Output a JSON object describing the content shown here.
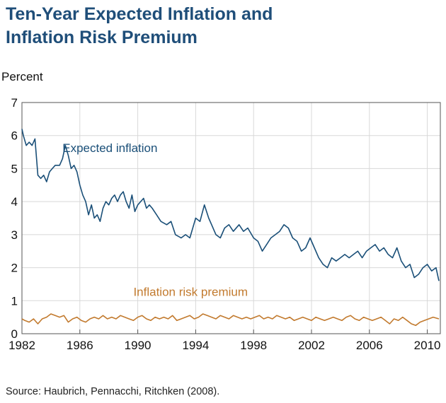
{
  "chart_data": {
    "type": "line",
    "title_line1": "Ten-Year Expected Inflation and",
    "title_line2": "Inflation Risk Premium",
    "ylabel": "Percent",
    "source": "Source: Haubrich, Pennacchi, Ritchken (2008).",
    "xlim": [
      1982,
      2010.9
    ],
    "ylim": [
      0,
      7
    ],
    "xticks": [
      1982,
      1986,
      1990,
      1994,
      1998,
      2002,
      2006,
      2010
    ],
    "yticks": [
      0,
      1,
      2,
      3,
      4,
      5,
      6,
      7
    ],
    "grid": true,
    "series": [
      {
        "name": "Expected inflation",
        "color": "#1a4f78",
        "label_at": [
          1984.8,
          5.5
        ],
        "x": [
          1982.0,
          1982.1,
          1982.3,
          1982.5,
          1982.7,
          1982.9,
          1983.1,
          1983.3,
          1983.5,
          1983.7,
          1983.9,
          1984.1,
          1984.3,
          1984.6,
          1984.8,
          1985.0,
          1985.2,
          1985.4,
          1985.6,
          1985.8,
          1986.0,
          1986.2,
          1986.4,
          1986.6,
          1986.8,
          1987.0,
          1987.2,
          1987.4,
          1987.6,
          1987.8,
          1988.0,
          1988.2,
          1988.4,
          1988.6,
          1988.8,
          1989.0,
          1989.2,
          1989.4,
          1989.6,
          1989.8,
          1990.0,
          1990.2,
          1990.4,
          1990.6,
          1990.8,
          1991.0,
          1991.3,
          1991.6,
          1992.0,
          1992.3,
          1992.6,
          1993.0,
          1993.3,
          1993.6,
          1994.0,
          1994.3,
          1994.6,
          1994.9,
          1995.1,
          1995.4,
          1995.7,
          1996.0,
          1996.3,
          1996.6,
          1997.0,
          1997.3,
          1997.6,
          1998.0,
          1998.3,
          1998.6,
          1998.9,
          1999.2,
          1999.5,
          1999.8,
          2000.1,
          2000.4,
          2000.7,
          2001.0,
          2001.3,
          2001.6,
          2001.9,
          2002.2,
          2002.5,
          2002.8,
          2003.1,
          2003.4,
          2003.7,
          2004.0,
          2004.3,
          2004.6,
          2004.9,
          2005.2,
          2005.5,
          2005.8,
          2006.1,
          2006.4,
          2006.7,
          2007.0,
          2007.3,
          2007.6,
          2007.9,
          2008.2,
          2008.5,
          2008.8,
          2009.1,
          2009.4,
          2009.7,
          2010.0,
          2010.3,
          2010.6,
          2010.8
        ],
        "y": [
          6.2,
          6.0,
          5.7,
          5.8,
          5.7,
          5.9,
          4.8,
          4.7,
          4.8,
          4.6,
          4.9,
          5.0,
          5.1,
          5.1,
          5.3,
          5.7,
          5.4,
          5.0,
          5.1,
          4.9,
          4.5,
          4.2,
          4.0,
          3.6,
          3.9,
          3.5,
          3.6,
          3.4,
          3.8,
          4.0,
          3.9,
          4.1,
          4.2,
          4.0,
          4.2,
          4.3,
          4.0,
          3.8,
          4.2,
          3.7,
          3.9,
          4.0,
          4.1,
          3.8,
          3.9,
          3.8,
          3.6,
          3.4,
          3.3,
          3.4,
          3.0,
          2.9,
          3.0,
          2.9,
          3.5,
          3.4,
          3.9,
          3.5,
          3.3,
          3.0,
          2.9,
          3.2,
          3.3,
          3.1,
          3.3,
          3.1,
          3.2,
          2.9,
          2.8,
          2.5,
          2.7,
          2.9,
          3.0,
          3.1,
          3.3,
          3.2,
          2.9,
          2.8,
          2.5,
          2.6,
          2.9,
          2.6,
          2.3,
          2.1,
          2.0,
          2.3,
          2.2,
          2.3,
          2.4,
          2.3,
          2.4,
          2.5,
          2.3,
          2.5,
          2.6,
          2.7,
          2.5,
          2.6,
          2.4,
          2.3,
          2.6,
          2.2,
          2.0,
          2.1,
          1.7,
          1.8,
          2.0,
          2.1,
          1.9,
          2.0,
          1.6
        ]
      },
      {
        "name": "Inflation risk premium",
        "color": "#c27a2e",
        "label_at": [
          1989.7,
          1.15
        ],
        "x": [
          1982.0,
          1982.2,
          1982.5,
          1982.8,
          1983.1,
          1983.4,
          1983.7,
          1984.0,
          1984.3,
          1984.6,
          1984.9,
          1985.2,
          1985.5,
          1985.8,
          1986.1,
          1986.4,
          1986.7,
          1987.0,
          1987.3,
          1987.6,
          1987.9,
          1988.2,
          1988.5,
          1988.8,
          1989.1,
          1989.4,
          1989.7,
          1990.0,
          1990.3,
          1990.6,
          1990.9,
          1991.2,
          1991.5,
          1991.8,
          1992.1,
          1992.4,
          1992.7,
          1993.0,
          1993.3,
          1993.6,
          1993.9,
          1994.2,
          1994.5,
          1994.8,
          1995.1,
          1995.4,
          1995.7,
          1996.0,
          1996.3,
          1996.6,
          1996.9,
          1997.2,
          1997.5,
          1997.8,
          1998.1,
          1998.4,
          1998.7,
          1999.0,
          1999.3,
          1999.6,
          1999.9,
          2000.2,
          2000.5,
          2000.8,
          2001.1,
          2001.4,
          2001.7,
          2002.0,
          2002.3,
          2002.6,
          2002.9,
          2003.2,
          2003.5,
          2003.8,
          2004.1,
          2004.4,
          2004.7,
          2005.0,
          2005.3,
          2005.6,
          2005.9,
          2006.2,
          2006.5,
          2006.8,
          2007.1,
          2007.4,
          2007.7,
          2008.0,
          2008.3,
          2008.6,
          2008.9,
          2009.2,
          2009.5,
          2009.8,
          2010.1,
          2010.4,
          2010.8
        ],
        "y": [
          0.45,
          0.4,
          0.35,
          0.45,
          0.3,
          0.45,
          0.5,
          0.6,
          0.55,
          0.5,
          0.55,
          0.35,
          0.45,
          0.5,
          0.4,
          0.35,
          0.45,
          0.5,
          0.45,
          0.55,
          0.45,
          0.5,
          0.45,
          0.55,
          0.5,
          0.45,
          0.4,
          0.5,
          0.55,
          0.45,
          0.4,
          0.5,
          0.45,
          0.5,
          0.45,
          0.55,
          0.4,
          0.45,
          0.5,
          0.55,
          0.45,
          0.5,
          0.6,
          0.55,
          0.5,
          0.45,
          0.55,
          0.5,
          0.45,
          0.55,
          0.5,
          0.45,
          0.5,
          0.45,
          0.5,
          0.55,
          0.45,
          0.5,
          0.45,
          0.55,
          0.5,
          0.45,
          0.5,
          0.4,
          0.45,
          0.5,
          0.45,
          0.4,
          0.5,
          0.45,
          0.4,
          0.45,
          0.5,
          0.45,
          0.4,
          0.5,
          0.55,
          0.45,
          0.4,
          0.5,
          0.45,
          0.4,
          0.45,
          0.5,
          0.4,
          0.3,
          0.45,
          0.4,
          0.5,
          0.4,
          0.3,
          0.25,
          0.35,
          0.4,
          0.45,
          0.5,
          0.45
        ]
      }
    ]
  }
}
